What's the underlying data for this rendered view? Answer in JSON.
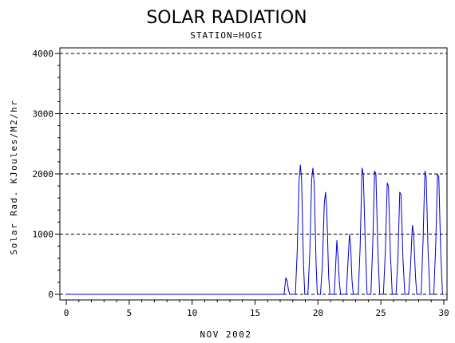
{
  "chart_data": {
    "type": "line",
    "title": "SOLAR RADIATION",
    "subtitle": "STATION=HOGI",
    "xlabel": "NOV 2002",
    "ylabel": "Solar Rad. KJoules/M2/hr",
    "xlim": [
      0,
      30
    ],
    "ylim": [
      0,
      4000
    ],
    "x_ticks": [
      0,
      5,
      10,
      15,
      20,
      25,
      30
    ],
    "y_ticks": [
      0,
      1000,
      2000,
      3000,
      4000
    ],
    "grid": "horizontal dashed",
    "series": [
      {
        "color": "#0000cc",
        "points": [
          [
            0,
            0
          ],
          [
            17.3,
            0
          ],
          [
            17.45,
            280
          ],
          [
            17.55,
            220
          ],
          [
            17.65,
            80
          ],
          [
            17.75,
            0
          ],
          [
            18.2,
            0
          ],
          [
            18.35,
            700
          ],
          [
            18.5,
            1900
          ],
          [
            18.6,
            2150
          ],
          [
            18.7,
            1900
          ],
          [
            18.85,
            500
          ],
          [
            18.95,
            0
          ],
          [
            19.2,
            0
          ],
          [
            19.35,
            700
          ],
          [
            19.5,
            1900
          ],
          [
            19.6,
            2100
          ],
          [
            19.7,
            1850
          ],
          [
            19.85,
            500
          ],
          [
            19.95,
            0
          ],
          [
            20.2,
            0
          ],
          [
            20.35,
            500
          ],
          [
            20.5,
            1500
          ],
          [
            20.6,
            1700
          ],
          [
            20.7,
            1400
          ],
          [
            20.85,
            300
          ],
          [
            20.95,
            0
          ],
          [
            21.3,
            0
          ],
          [
            21.4,
            450
          ],
          [
            21.5,
            900
          ],
          [
            21.6,
            600
          ],
          [
            21.7,
            200
          ],
          [
            21.8,
            0
          ],
          [
            22.25,
            0
          ],
          [
            22.4,
            600
          ],
          [
            22.5,
            1000
          ],
          [
            22.6,
            800
          ],
          [
            22.7,
            250
          ],
          [
            22.8,
            0
          ],
          [
            23.2,
            0
          ],
          [
            23.35,
            800
          ],
          [
            23.5,
            2100
          ],
          [
            23.6,
            2000
          ],
          [
            23.75,
            900
          ],
          [
            23.9,
            0
          ],
          [
            24.2,
            0
          ],
          [
            24.35,
            800
          ],
          [
            24.5,
            2050
          ],
          [
            24.6,
            2000
          ],
          [
            24.75,
            800
          ],
          [
            24.9,
            0
          ],
          [
            25.2,
            0
          ],
          [
            25.35,
            700
          ],
          [
            25.5,
            1850
          ],
          [
            25.6,
            1800
          ],
          [
            25.75,
            700
          ],
          [
            25.9,
            0
          ],
          [
            26.2,
            0
          ],
          [
            26.35,
            600
          ],
          [
            26.5,
            1700
          ],
          [
            26.6,
            1650
          ],
          [
            26.75,
            600
          ],
          [
            26.9,
            0
          ],
          [
            27.2,
            0
          ],
          [
            27.35,
            450
          ],
          [
            27.5,
            1150
          ],
          [
            27.6,
            1000
          ],
          [
            27.75,
            300
          ],
          [
            27.85,
            0
          ],
          [
            28.2,
            0
          ],
          [
            28.35,
            900
          ],
          [
            28.5,
            2050
          ],
          [
            28.6,
            1950
          ],
          [
            28.75,
            700
          ],
          [
            28.9,
            0
          ],
          [
            29.2,
            0
          ],
          [
            29.35,
            800
          ],
          [
            29.5,
            2000
          ],
          [
            29.6,
            1950
          ],
          [
            29.75,
            700
          ],
          [
            29.9,
            0
          ],
          [
            30,
            0
          ]
        ]
      }
    ]
  }
}
